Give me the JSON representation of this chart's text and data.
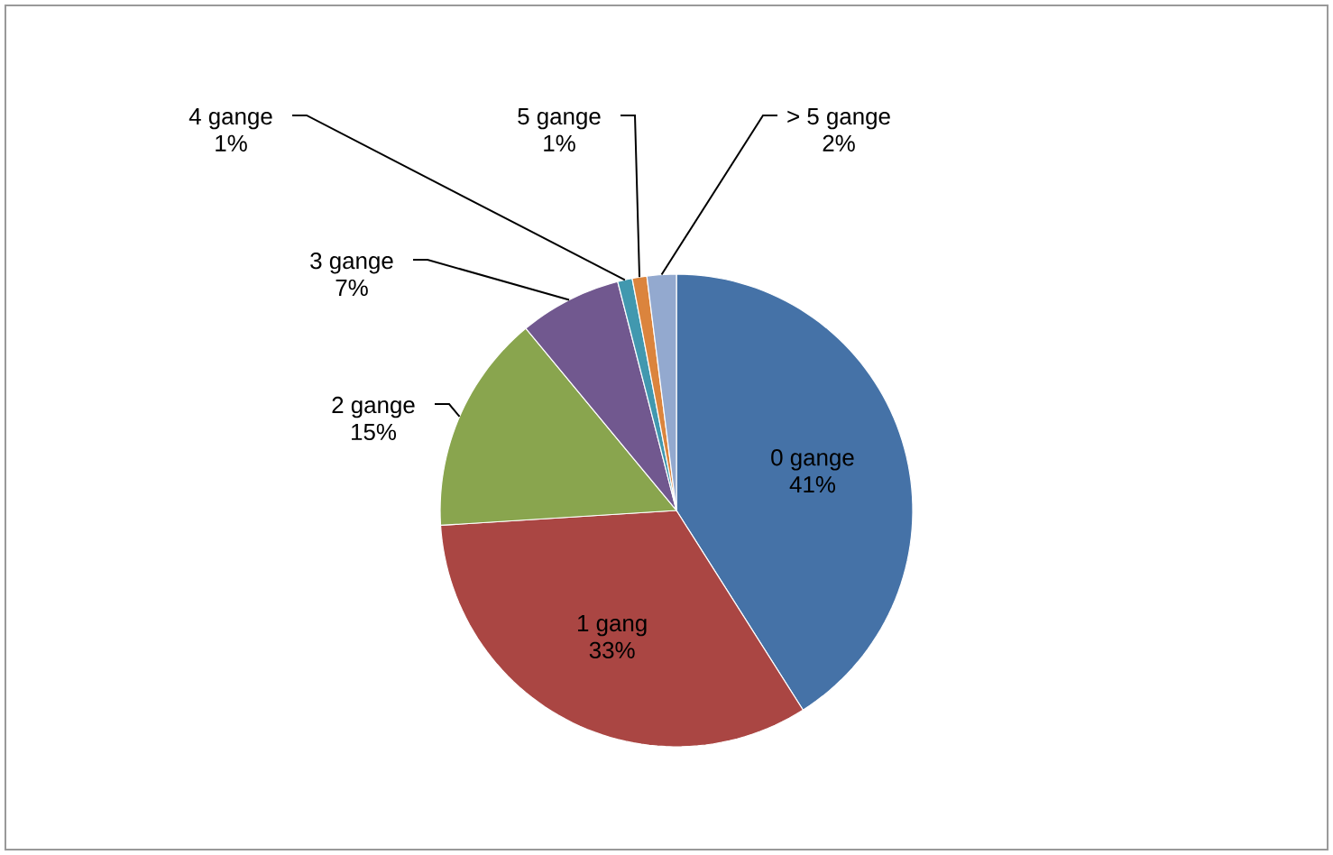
{
  "chart_data": {
    "type": "pie",
    "categories": [
      "0 gange",
      "1 gang",
      "2 gange",
      "3 gange",
      "4 gange",
      "5 gange",
      "> 5 gange"
    ],
    "values": [
      41,
      33,
      15,
      7,
      1,
      1,
      2
    ],
    "value_labels": [
      "41%",
      "33%",
      "15%",
      "7%",
      "1%",
      "1%",
      "2%"
    ],
    "colors": [
      "#4572a7",
      "#aa4643",
      "#89a54e",
      "#71588f",
      "#4198af",
      "#db843d",
      "#93a9cf"
    ]
  }
}
